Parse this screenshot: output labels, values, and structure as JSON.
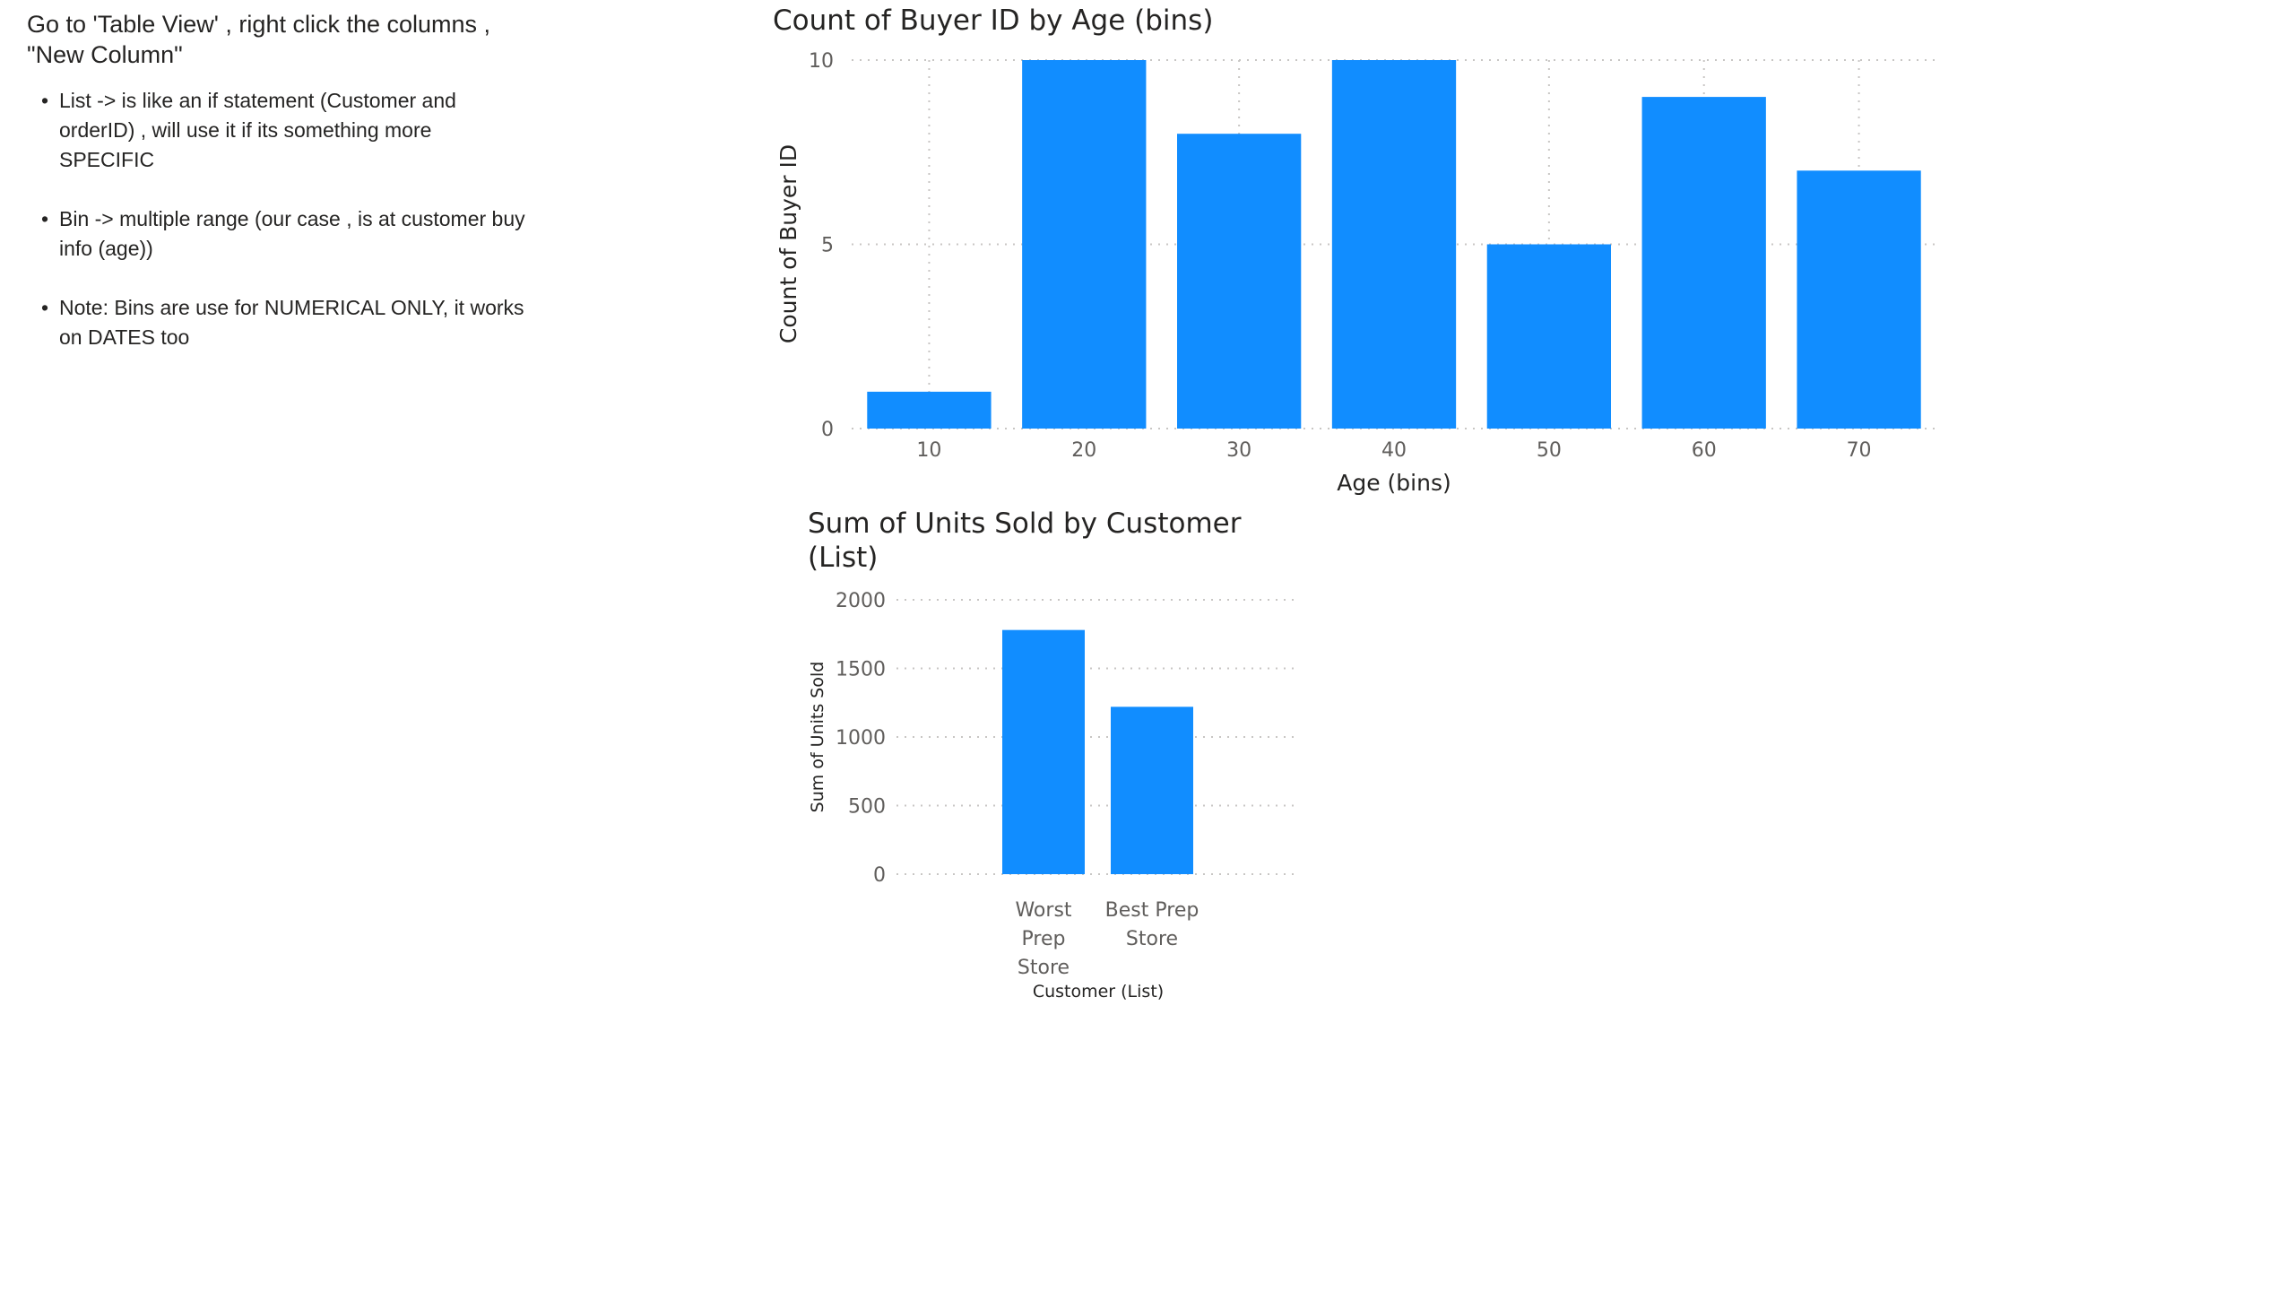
{
  "notes": {
    "intro": "Go to 'Table View' , right click the columns , \"New Column\"",
    "bullets": [
      "List -> is like an if statement (Customer and orderID) , will use it if its something more SPECIFIC",
      "Bin -> multiple range (our case , is at customer buy info (age))",
      "Note: Bins are use for NUMERICAL ONLY, it works on DATES too"
    ]
  },
  "colors": {
    "bar": "#118dff",
    "gridline": "#c8c6c4",
    "text": "#252423",
    "tick": "#605e5c"
  },
  "chart_data": [
    {
      "type": "bar",
      "title": "Count of Buyer ID by Age (bins)",
      "xlabel": "Age (bins)",
      "ylabel": "Count of Buyer ID",
      "categories": [
        "10",
        "20",
        "30",
        "40",
        "50",
        "60",
        "70"
      ],
      "values": [
        1,
        10,
        8,
        10,
        5,
        9,
        7
      ],
      "ylim": [
        0,
        10
      ],
      "yticks": [
        0,
        5,
        10
      ],
      "grid": true,
      "legend": "none"
    },
    {
      "type": "bar",
      "title": "Sum of Units Sold by Customer (List)",
      "title_lines": [
        "Sum of Units Sold by Customer",
        "(List)"
      ],
      "xlabel": "Customer (List)",
      "ylabel": "Sum of Units Sold",
      "categories": [
        "Worst Prep Store",
        "Best Prep Store"
      ],
      "category_lines": [
        [
          "Worst",
          "Prep",
          "Store"
        ],
        [
          "Best Prep",
          "Store"
        ]
      ],
      "values": [
        1780,
        1220
      ],
      "ylim": [
        0,
        2000
      ],
      "yticks": [
        0,
        500,
        1000,
        1500,
        2000
      ],
      "grid": true,
      "legend": "none"
    }
  ]
}
